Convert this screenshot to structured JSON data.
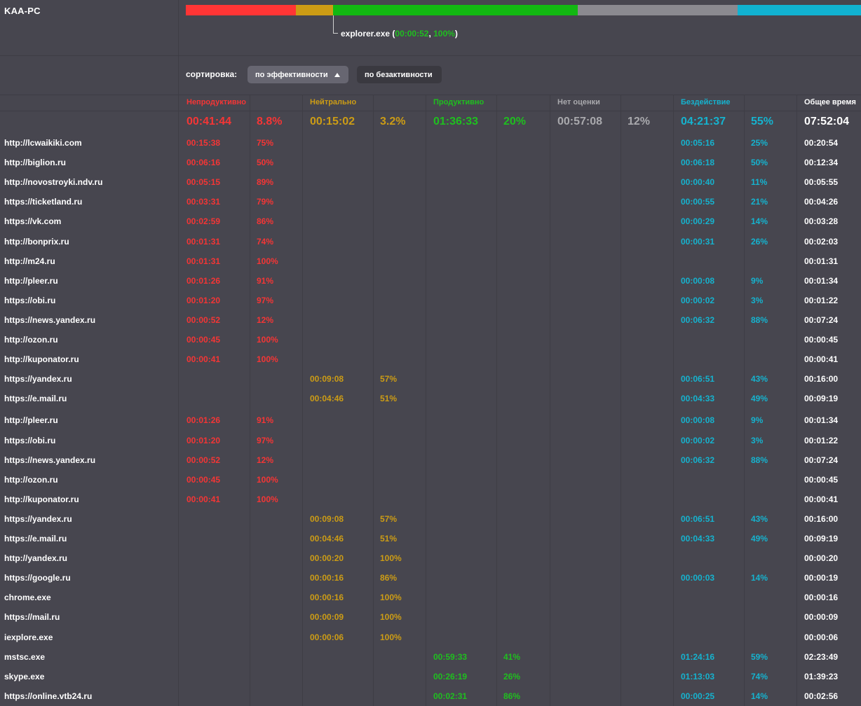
{
  "computer": {
    "name": "KAA-PC"
  },
  "timeline": {
    "segments": [
      {
        "category": "unproductive",
        "color": "#ff3535",
        "fraction": 0.163
      },
      {
        "category": "neutral",
        "color": "#cc9c15",
        "fraction": 0.055
      },
      {
        "category": "productive",
        "color": "#12b812",
        "fraction": 0.363
      },
      {
        "category": "unrated",
        "color": "#8b8a90",
        "fraction": 0.236
      },
      {
        "category": "idle",
        "color": "#11b2d1",
        "fraction": 0.183
      }
    ],
    "tooltip": {
      "process": "explorer.exe",
      "open": " (",
      "time": "00:00:52",
      "sep": ", ",
      "percent": "100%",
      "close": ")"
    }
  },
  "sort": {
    "label": "сортировка:",
    "by_efficiency": "по эффективности",
    "by_inactivity": "по безактивности"
  },
  "columns": {
    "unproductive": {
      "label": "Непродуктивно",
      "time": "00:41:44",
      "percent": "8.8%",
      "color": "#f53535"
    },
    "neutral": {
      "label": "Нейтрально",
      "time": "00:15:02",
      "percent": "3.2%",
      "color": "#cc9c15"
    },
    "productive": {
      "label": "Продуктивно",
      "time": "01:36:33",
      "percent": "20%",
      "color": "#1fbf1f"
    },
    "unrated": {
      "label": "Нет оценки",
      "time": "00:57:08",
      "percent": "12%",
      "color": "#a9a9ad"
    },
    "idle": {
      "label": "Бездействие",
      "time": "04:21:37",
      "percent": "55%",
      "color": "#15b3cf"
    },
    "total": {
      "label": "Общее время",
      "time": "07:52:04"
    }
  },
  "rows": [
    {
      "name": "http://lcwaikiki.com",
      "u_t": "00:15:38",
      "u_p": "75%",
      "n_t": "",
      "n_p": "",
      "p_t": "",
      "p_p": "",
      "i_t": "00:05:16",
      "i_p": "25%",
      "total": "00:20:54"
    },
    {
      "name": "http://biglion.ru",
      "u_t": "00:06:16",
      "u_p": "50%",
      "n_t": "",
      "n_p": "",
      "p_t": "",
      "p_p": "",
      "i_t": "00:06:18",
      "i_p": "50%",
      "total": "00:12:34"
    },
    {
      "name": "http://novostroyki.ndv.ru",
      "u_t": "00:05:15",
      "u_p": "89%",
      "n_t": "",
      "n_p": "",
      "p_t": "",
      "p_p": "",
      "i_t": "00:00:40",
      "i_p": "11%",
      "total": "00:05:55"
    },
    {
      "name": "https://ticketland.ru",
      "u_t": "00:03:31",
      "u_p": "79%",
      "n_t": "",
      "n_p": "",
      "p_t": "",
      "p_p": "",
      "i_t": "00:00:55",
      "i_p": "21%",
      "total": "00:04:26"
    },
    {
      "name": "https://vk.com",
      "u_t": "00:02:59",
      "u_p": "86%",
      "n_t": "",
      "n_p": "",
      "p_t": "",
      "p_p": "",
      "i_t": "00:00:29",
      "i_p": "14%",
      "total": "00:03:28"
    },
    {
      "name": "http://bonprix.ru",
      "u_t": "00:01:31",
      "u_p": "74%",
      "n_t": "",
      "n_p": "",
      "p_t": "",
      "p_p": "",
      "i_t": "00:00:31",
      "i_p": "26%",
      "total": "00:02:03"
    },
    {
      "name": "http://m24.ru",
      "u_t": "00:01:31",
      "u_p": "100%",
      "n_t": "",
      "n_p": "",
      "p_t": "",
      "p_p": "",
      "i_t": "",
      "i_p": "",
      "total": "00:01:31"
    },
    {
      "name": "http://pleer.ru",
      "u_t": "00:01:26",
      "u_p": "91%",
      "n_t": "",
      "n_p": "",
      "p_t": "",
      "p_p": "",
      "i_t": "00:00:08",
      "i_p": "9%",
      "total": "00:01:34"
    },
    {
      "name": "https://obi.ru",
      "u_t": "00:01:20",
      "u_p": "97%",
      "n_t": "",
      "n_p": "",
      "p_t": "",
      "p_p": "",
      "i_t": "00:00:02",
      "i_p": "3%",
      "total": "00:01:22"
    },
    {
      "name": "https://news.yandex.ru",
      "u_t": "00:00:52",
      "u_p": "12%",
      "n_t": "",
      "n_p": "",
      "p_t": "",
      "p_p": "",
      "i_t": "00:06:32",
      "i_p": "88%",
      "total": "00:07:24"
    },
    {
      "name": "http://ozon.ru",
      "u_t": "00:00:45",
      "u_p": "100%",
      "n_t": "",
      "n_p": "",
      "p_t": "",
      "p_p": "",
      "i_t": "",
      "i_p": "",
      "total": "00:00:45"
    },
    {
      "name": "http://kuponator.ru",
      "u_t": "00:00:41",
      "u_p": "100%",
      "n_t": "",
      "n_p": "",
      "p_t": "",
      "p_p": "",
      "i_t": "",
      "i_p": "",
      "total": "00:00:41"
    },
    {
      "name": "https://yandex.ru",
      "u_t": "",
      "u_p": "",
      "n_t": "00:09:08",
      "n_p": "57%",
      "p_t": "",
      "p_p": "",
      "i_t": "00:06:51",
      "i_p": "43%",
      "total": "00:16:00"
    },
    {
      "name": "https://e.mail.ru",
      "u_t": "",
      "u_p": "",
      "n_t": "00:04:46",
      "n_p": "51%",
      "p_t": "",
      "p_p": "",
      "i_t": "00:04:33",
      "i_p": "49%",
      "total": "00:09:19"
    },
    {
      "name": "http://pleer.ru",
      "u_t": "00:01:26",
      "u_p": "91%",
      "n_t": "",
      "n_p": "",
      "p_t": "",
      "p_p": "",
      "i_t": "00:00:08",
      "i_p": "9%",
      "total": "00:01:34"
    },
    {
      "name": "https://obi.ru",
      "u_t": "00:01:20",
      "u_p": "97%",
      "n_t": "",
      "n_p": "",
      "p_t": "",
      "p_p": "",
      "i_t": "00:00:02",
      "i_p": "3%",
      "total": "00:01:22"
    },
    {
      "name": "https://news.yandex.ru",
      "u_t": "00:00:52",
      "u_p": "12%",
      "n_t": "",
      "n_p": "",
      "p_t": "",
      "p_p": "",
      "i_t": "00:06:32",
      "i_p": "88%",
      "total": "00:07:24"
    },
    {
      "name": "http://ozon.ru",
      "u_t": "00:00:45",
      "u_p": "100%",
      "n_t": "",
      "n_p": "",
      "p_t": "",
      "p_p": "",
      "i_t": "",
      "i_p": "",
      "total": "00:00:45"
    },
    {
      "name": "http://kuponator.ru",
      "u_t": "00:00:41",
      "u_p": "100%",
      "n_t": "",
      "n_p": "",
      "p_t": "",
      "p_p": "",
      "i_t": "",
      "i_p": "",
      "total": "00:00:41"
    },
    {
      "name": "https://yandex.ru",
      "u_t": "",
      "u_p": "",
      "n_t": "00:09:08",
      "n_p": "57%",
      "p_t": "",
      "p_p": "",
      "i_t": "00:06:51",
      "i_p": "43%",
      "total": "00:16:00"
    },
    {
      "name": "https://e.mail.ru",
      "u_t": "",
      "u_p": "",
      "n_t": "00:04:46",
      "n_p": "51%",
      "p_t": "",
      "p_p": "",
      "i_t": "00:04:33",
      "i_p": "49%",
      "total": "00:09:19"
    },
    {
      "name": "http://yandex.ru",
      "u_t": "",
      "u_p": "",
      "n_t": "00:00:20",
      "n_p": "100%",
      "p_t": "",
      "p_p": "",
      "i_t": "",
      "i_p": "",
      "total": "00:00:20"
    },
    {
      "name": "https://google.ru",
      "u_t": "",
      "u_p": "",
      "n_t": "00:00:16",
      "n_p": "86%",
      "p_t": "",
      "p_p": "",
      "i_t": "00:00:03",
      "i_p": "14%",
      "total": "00:00:19"
    },
    {
      "name": "chrome.exe",
      "u_t": "",
      "u_p": "",
      "n_t": "00:00:16",
      "n_p": "100%",
      "p_t": "",
      "p_p": "",
      "i_t": "",
      "i_p": "",
      "total": "00:00:16"
    },
    {
      "name": "https://mail.ru",
      "u_t": "",
      "u_p": "",
      "n_t": "00:00:09",
      "n_p": "100%",
      "p_t": "",
      "p_p": "",
      "i_t": "",
      "i_p": "",
      "total": "00:00:09"
    },
    {
      "name": "iexplore.exe",
      "u_t": "",
      "u_p": "",
      "n_t": "00:00:06",
      "n_p": "100%",
      "p_t": "",
      "p_p": "",
      "i_t": "",
      "i_p": "",
      "total": "00:00:06"
    },
    {
      "name": "mstsc.exe",
      "u_t": "",
      "u_p": "",
      "n_t": "",
      "n_p": "",
      "p_t": "00:59:33",
      "p_p": "41%",
      "i_t": "01:24:16",
      "i_p": "59%",
      "total": "02:23:49"
    },
    {
      "name": "skype.exe",
      "u_t": "",
      "u_p": "",
      "n_t": "",
      "n_p": "",
      "p_t": "00:26:19",
      "p_p": "26%",
      "i_t": "01:13:03",
      "i_p": "74%",
      "total": "01:39:23"
    },
    {
      "name": "https://online.vtb24.ru",
      "u_t": "",
      "u_p": "",
      "n_t": "",
      "n_p": "",
      "p_t": "00:02:31",
      "p_p": "86%",
      "i_t": "00:00:25",
      "i_p": "14%",
      "total": "00:02:56"
    }
  ]
}
